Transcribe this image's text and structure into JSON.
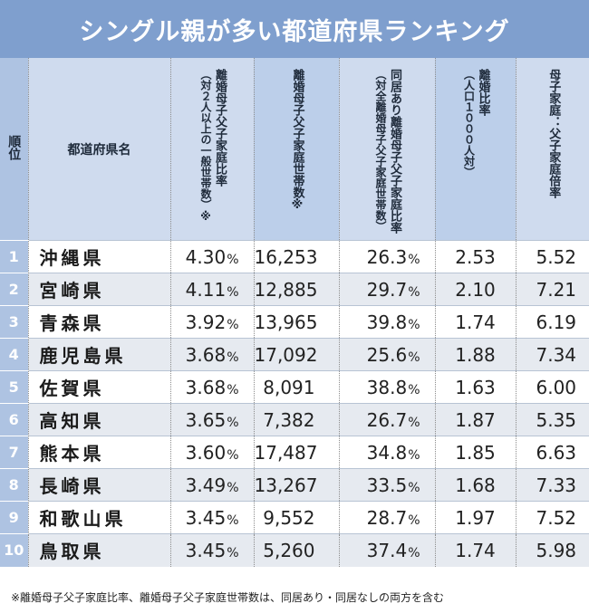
{
  "title": "シングル親が多い都道府県ランキング",
  "headers": {
    "rank": "順位",
    "name": "都道府県名",
    "col1_main": "離婚母子父子家庭比率",
    "col1_sub": "（対２人以上の一般世帯数）※",
    "col2_main": "離婚母子父子家庭世帯数※",
    "col3_main": "同居あり離婚母子父子家庭比率",
    "col3_sub": "（対全離婚母子父子家庭世帯数）",
    "col4_main": "離婚比率",
    "col4_sub": "（人口１０００人対）",
    "col5_main": "母子家庭：父子家庭倍率"
  },
  "unit_percent": "%",
  "rows": [
    {
      "rank": "1",
      "name": "沖縄県",
      "ratio": "4.30",
      "households": "16,253",
      "cohab": "26.3",
      "divorce": "2.53",
      "mult": "5.52"
    },
    {
      "rank": "2",
      "name": "宮崎県",
      "ratio": "4.11",
      "households": "12,885",
      "cohab": "29.7",
      "divorce": "2.10",
      "mult": "7.21"
    },
    {
      "rank": "3",
      "name": "青森県",
      "ratio": "3.92",
      "households": "13,965",
      "cohab": "39.8",
      "divorce": "1.74",
      "mult": "6.19"
    },
    {
      "rank": "4",
      "name": "鹿児島県",
      "ratio": "3.68",
      "households": "17,092",
      "cohab": "25.6",
      "divorce": "1.88",
      "mult": "7.34"
    },
    {
      "rank": "5",
      "name": "佐賀県",
      "ratio": "3.68",
      "households": "8,091",
      "cohab": "38.8",
      "divorce": "1.63",
      "mult": "6.00"
    },
    {
      "rank": "6",
      "name": "高知県",
      "ratio": "3.65",
      "households": "7,382",
      "cohab": "26.7",
      "divorce": "1.87",
      "mult": "5.35"
    },
    {
      "rank": "7",
      "name": "熊本県",
      "ratio": "3.60",
      "households": "17,487",
      "cohab": "34.8",
      "divorce": "1.85",
      "mult": "6.63"
    },
    {
      "rank": "8",
      "name": "長崎県",
      "ratio": "3.49",
      "households": "13,267",
      "cohab": "33.5",
      "divorce": "1.68",
      "mult": "7.33"
    },
    {
      "rank": "9",
      "name": "和歌山県",
      "ratio": "3.45",
      "households": "9,552",
      "cohab": "28.7",
      "divorce": "1.97",
      "mult": "7.52"
    },
    {
      "rank": "10",
      "name": "鳥取県",
      "ratio": "3.45",
      "households": "5,260",
      "cohab": "37.4",
      "divorce": "1.74",
      "mult": "5.98"
    }
  ],
  "footnote": "※離婚母子父子家庭比率、離婚母子父子家庭世帯数は、同居あり・同居なしの両方を含む"
}
